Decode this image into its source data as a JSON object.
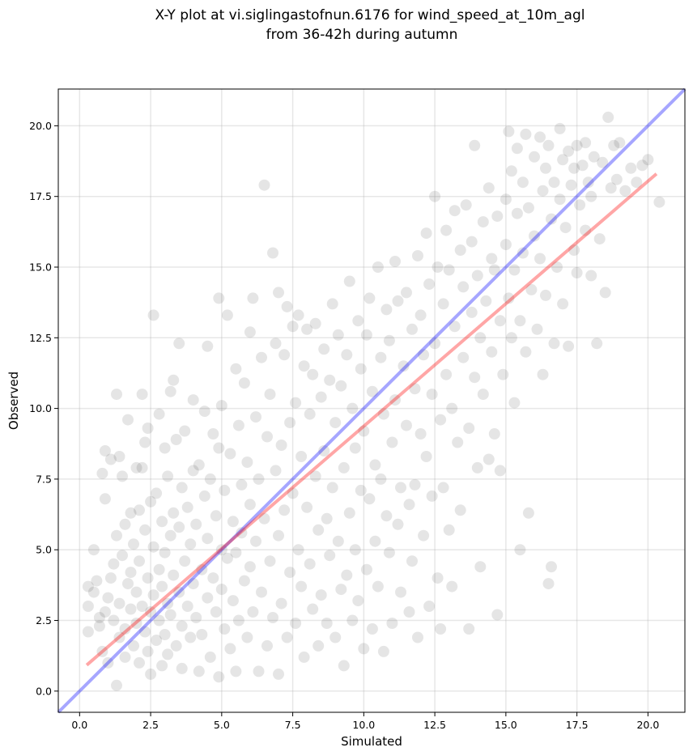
{
  "chart_data": {
    "type": "scatter",
    "title_line1": "X-Y plot at vi.siglingastofnun.6176 for wind_speed_at_10m_agl",
    "title_line2": "from 36-42h during autumn",
    "xlabel": "Simulated",
    "ylabel": "Observed",
    "xlim": [
      -0.75,
      21.3
    ],
    "ylim": [
      -0.75,
      21.3
    ],
    "xticks": [
      0.0,
      2.5,
      5.0,
      7.5,
      10.0,
      12.5,
      15.0,
      17.5,
      20.0
    ],
    "yticks": [
      0.0,
      2.5,
      5.0,
      7.5,
      10.0,
      12.5,
      15.0,
      17.5,
      20.0
    ],
    "grid": true,
    "marker_color": "#000000",
    "marker_alpha": 0.1,
    "identity_line": {
      "from": [
        -0.75,
        -0.75
      ],
      "to": [
        21.3,
        21.3
      ],
      "color": "#0000ff",
      "alpha": 0.35
    },
    "fit_line": {
      "from": [
        0.25,
        0.92
      ],
      "to": [
        20.3,
        18.3
      ],
      "color": "#ff0000",
      "alpha": 0.35
    },
    "points": [
      [
        0.3,
        2.1
      ],
      [
        0.3,
        3.7
      ],
      [
        0.3,
        3.0
      ],
      [
        0.5,
        5.0
      ],
      [
        0.5,
        3.5
      ],
      [
        0.6,
        3.9
      ],
      [
        0.7,
        2.6
      ],
      [
        0.7,
        2.3
      ],
      [
        0.8,
        1.4
      ],
      [
        0.8,
        7.7
      ],
      [
        0.9,
        6.8
      ],
      [
        0.9,
        8.5
      ],
      [
        0.9,
        2.8
      ],
      [
        1.0,
        3.3
      ],
      [
        1.0,
        1.0
      ],
      [
        1.1,
        8.2
      ],
      [
        1.1,
        4.0
      ],
      [
        1.2,
        2.5
      ],
      [
        1.2,
        4.5
      ],
      [
        1.3,
        5.5
      ],
      [
        1.3,
        10.5
      ],
      [
        1.3,
        0.2
      ],
      [
        1.4,
        8.3
      ],
      [
        1.4,
        1.9
      ],
      [
        1.4,
        3.1
      ],
      [
        1.5,
        7.6
      ],
      [
        1.5,
        4.8
      ],
      [
        1.6,
        2.2
      ],
      [
        1.6,
        5.9
      ],
      [
        1.6,
        1.2
      ],
      [
        1.7,
        9.6
      ],
      [
        1.7,
        3.8
      ],
      [
        1.8,
        2.9
      ],
      [
        1.8,
        6.3
      ],
      [
        1.8,
        4.2
      ],
      [
        1.9,
        1.6
      ],
      [
        1.9,
        5.2
      ],
      [
        2.0,
        3.5
      ],
      [
        2.0,
        7.9
      ],
      [
        2.0,
        2.4
      ],
      [
        2.1,
        6.4
      ],
      [
        2.1,
        1.0
      ],
      [
        2.1,
        4.6
      ],
      [
        2.2,
        10.5
      ],
      [
        2.2,
        3.0
      ],
      [
        2.2,
        7.9
      ],
      [
        2.3,
        8.8
      ],
      [
        2.3,
        2.1
      ],
      [
        2.3,
        5.7
      ],
      [
        2.4,
        1.4
      ],
      [
        2.4,
        4.0
      ],
      [
        2.4,
        9.3
      ],
      [
        2.5,
        2.8
      ],
      [
        2.5,
        6.7
      ],
      [
        2.5,
        0.6
      ],
      [
        2.6,
        13.3
      ],
      [
        2.6,
        3.4
      ],
      [
        2.6,
        5.1
      ],
      [
        2.7,
        1.8
      ],
      [
        2.7,
        7.0
      ],
      [
        2.8,
        4.3
      ],
      [
        2.8,
        2.5
      ],
      [
        2.8,
        9.8
      ],
      [
        2.9,
        3.7
      ],
      [
        2.9,
        6.0
      ],
      [
        2.9,
        0.9
      ],
      [
        3.0,
        2.0
      ],
      [
        3.0,
        8.6
      ],
      [
        3.0,
        4.9
      ],
      [
        3.1,
        3.1
      ],
      [
        3.1,
        7.6
      ],
      [
        3.1,
        1.3
      ],
      [
        3.2,
        5.5
      ],
      [
        3.2,
        10.6
      ],
      [
        3.2,
        2.7
      ],
      [
        3.3,
        6.3
      ],
      [
        3.3,
        4.1
      ],
      [
        3.3,
        11.0
      ],
      [
        3.4,
        1.6
      ],
      [
        3.4,
        8.9
      ],
      [
        3.5,
        3.5
      ],
      [
        3.5,
        12.3
      ],
      [
        3.5,
        5.8
      ],
      [
        3.6,
        2.3
      ],
      [
        3.6,
        7.2
      ],
      [
        3.6,
        0.8
      ],
      [
        3.7,
        4.6
      ],
      [
        3.7,
        9.2
      ],
      [
        3.8,
        3.0
      ],
      [
        3.8,
        6.5
      ],
      [
        3.9,
        1.9
      ],
      [
        3.9,
        5.2
      ],
      [
        4.0,
        10.3
      ],
      [
        4.0,
        3.8
      ],
      [
        4.0,
        7.8
      ],
      [
        4.1,
        2.6
      ],
      [
        4.1,
        5.9
      ],
      [
        4.2,
        0.7
      ],
      [
        4.2,
        8.0
      ],
      [
        4.3,
        4.3
      ],
      [
        4.3,
        2.0
      ],
      [
        4.4,
        6.9
      ],
      [
        4.4,
        9.9
      ],
      [
        4.5,
        3.3
      ],
      [
        4.5,
        12.2
      ],
      [
        4.5,
        5.4
      ],
      [
        4.6,
        1.2
      ],
      [
        4.6,
        7.5
      ],
      [
        4.7,
        4.0
      ],
      [
        4.7,
        9.1
      ],
      [
        4.8,
        2.8
      ],
      [
        4.8,
        6.2
      ],
      [
        4.9,
        13.9
      ],
      [
        4.9,
        0.5
      ],
      [
        4.9,
        8.6
      ],
      [
        5.0,
        3.6
      ],
      [
        5.0,
        5.0
      ],
      [
        5.0,
        10.1
      ],
      [
        5.1,
        2.2
      ],
      [
        5.1,
        7.1
      ],
      [
        5.2,
        4.7
      ],
      [
        5.2,
        13.3
      ],
      [
        5.3,
        1.5
      ],
      [
        5.3,
        8.4
      ],
      [
        5.4,
        3.2
      ],
      [
        5.4,
        6.0
      ],
      [
        5.5,
        11.4
      ],
      [
        5.5,
        0.7
      ],
      [
        5.5,
        4.9
      ],
      [
        5.6,
        9.4
      ],
      [
        5.6,
        2.5
      ],
      [
        5.7,
        7.3
      ],
      [
        5.7,
        5.6
      ],
      [
        5.8,
        10.9
      ],
      [
        5.8,
        3.9
      ],
      [
        5.9,
        1.9
      ],
      [
        5.9,
        8.1
      ],
      [
        6.0,
        12.7
      ],
      [
        6.0,
        4.4
      ],
      [
        6.0,
        6.6
      ],
      [
        6.1,
        13.9
      ],
      [
        6.1,
        2.8
      ],
      [
        6.2,
        9.7
      ],
      [
        6.2,
        5.3
      ],
      [
        6.3,
        0.7
      ],
      [
        6.3,
        7.5
      ],
      [
        6.4,
        11.8
      ],
      [
        6.4,
        3.5
      ],
      [
        6.5,
        17.9
      ],
      [
        6.5,
        6.1
      ],
      [
        6.6,
        9.0
      ],
      [
        6.6,
        1.6
      ],
      [
        6.7,
        4.6
      ],
      [
        6.7,
        10.5
      ],
      [
        6.8,
        15.5
      ],
      [
        6.8,
        2.6
      ],
      [
        6.9,
        7.8
      ],
      [
        6.9,
        12.3
      ],
      [
        7.0,
        14.1
      ],
      [
        7.0,
        0.6
      ],
      [
        7.0,
        5.5
      ],
      [
        7.1,
        8.7
      ],
      [
        7.1,
        3.1
      ],
      [
        7.2,
        11.9
      ],
      [
        7.2,
        6.4
      ],
      [
        7.3,
        13.6
      ],
      [
        7.3,
        1.9
      ],
      [
        7.4,
        9.5
      ],
      [
        7.4,
        4.2
      ],
      [
        7.5,
        12.9
      ],
      [
        7.5,
        7.0
      ],
      [
        7.6,
        2.4
      ],
      [
        7.6,
        10.2
      ],
      [
        7.7,
        5.0
      ],
      [
        7.7,
        13.3
      ],
      [
        7.8,
        8.3
      ],
      [
        7.8,
        3.7
      ],
      [
        7.9,
        11.5
      ],
      [
        7.9,
        1.2
      ],
      [
        8.0,
        6.5
      ],
      [
        8.0,
        12.8
      ],
      [
        8.1,
        9.8
      ],
      [
        8.1,
        4.5
      ],
      [
        8.2,
        2.9
      ],
      [
        8.2,
        11.2
      ],
      [
        8.3,
        7.6
      ],
      [
        8.3,
        13.0
      ],
      [
        8.4,
        5.7
      ],
      [
        8.4,
        1.6
      ],
      [
        8.5,
        10.4
      ],
      [
        8.5,
        3.4
      ],
      [
        8.6,
        12.1
      ],
      [
        8.6,
        8.5
      ],
      [
        8.7,
        6.1
      ],
      [
        8.7,
        2.4
      ],
      [
        8.8,
        11.0
      ],
      [
        8.8,
        4.8
      ],
      [
        8.9,
        13.7
      ],
      [
        8.9,
        7.2
      ],
      [
        9.0,
        9.5
      ],
      [
        9.0,
        1.9
      ],
      [
        9.1,
        5.3
      ],
      [
        9.1,
        12.6
      ],
      [
        9.2,
        3.6
      ],
      [
        9.2,
        10.8
      ],
      [
        9.3,
        7.9
      ],
      [
        9.3,
        0.9
      ],
      [
        9.4,
        4.1
      ],
      [
        9.4,
        11.9
      ],
      [
        9.5,
        14.5
      ],
      [
        9.5,
        6.3
      ],
      [
        9.6,
        2.5
      ],
      [
        9.6,
        10.0
      ],
      [
        9.7,
        8.6
      ],
      [
        9.7,
        5.0
      ],
      [
        9.8,
        13.1
      ],
      [
        9.8,
        3.2
      ],
      [
        9.9,
        11.4
      ],
      [
        9.9,
        7.1
      ],
      [
        10.0,
        1.5
      ],
      [
        10.0,
        9.2
      ],
      [
        10.1,
        12.6
      ],
      [
        10.1,
        4.3
      ],
      [
        10.2,
        6.8
      ],
      [
        10.2,
        13.9
      ],
      [
        10.3,
        2.2
      ],
      [
        10.3,
        10.6
      ],
      [
        10.4,
        8.0
      ],
      [
        10.4,
        5.3
      ],
      [
        10.5,
        15.0
      ],
      [
        10.5,
        3.7
      ],
      [
        10.6,
        11.8
      ],
      [
        10.6,
        7.5
      ],
      [
        10.7,
        9.8
      ],
      [
        10.7,
        1.4
      ],
      [
        10.8,
        13.5
      ],
      [
        10.8,
        6.2
      ],
      [
        10.9,
        4.9
      ],
      [
        10.9,
        12.4
      ],
      [
        11.0,
        8.8
      ],
      [
        11.0,
        2.4
      ],
      [
        11.1,
        15.2
      ],
      [
        11.1,
        10.3
      ],
      [
        11.2,
        5.9
      ],
      [
        11.2,
        13.8
      ],
      [
        11.3,
        7.2
      ],
      [
        11.3,
        3.5
      ],
      [
        11.4,
        11.5
      ],
      [
        11.5,
        9.4
      ],
      [
        11.5,
        14.1
      ],
      [
        11.6,
        6.6
      ],
      [
        11.6,
        2.8
      ],
      [
        11.7,
        12.8
      ],
      [
        11.7,
        4.6
      ],
      [
        11.8,
        10.7
      ],
      [
        11.8,
        7.3
      ],
      [
        11.9,
        15.4
      ],
      [
        11.9,
        1.9
      ],
      [
        12.0,
        13.3
      ],
      [
        12.0,
        9.1
      ],
      [
        12.1,
        5.5
      ],
      [
        12.1,
        11.9
      ],
      [
        12.2,
        16.2
      ],
      [
        12.2,
        8.3
      ],
      [
        12.3,
        3.0
      ],
      [
        12.3,
        14.4
      ],
      [
        12.4,
        10.5
      ],
      [
        12.4,
        6.9
      ],
      [
        12.5,
        17.5
      ],
      [
        12.5,
        12.3
      ],
      [
        12.6,
        4.0
      ],
      [
        12.6,
        15.0
      ],
      [
        12.7,
        9.6
      ],
      [
        12.7,
        2.2
      ],
      [
        12.8,
        13.7
      ],
      [
        12.8,
        7.2
      ],
      [
        12.9,
        11.2
      ],
      [
        12.9,
        16.3
      ],
      [
        13.0,
        5.7
      ],
      [
        13.0,
        14.9
      ],
      [
        13.1,
        10.0
      ],
      [
        13.1,
        3.7
      ],
      [
        13.2,
        12.9
      ],
      [
        13.2,
        17.0
      ],
      [
        13.3,
        8.8
      ],
      [
        13.4,
        15.6
      ],
      [
        13.4,
        6.4
      ],
      [
        13.5,
        11.8
      ],
      [
        13.5,
        14.3
      ],
      [
        13.6,
        17.2
      ],
      [
        13.7,
        9.3
      ],
      [
        13.7,
        2.2
      ],
      [
        13.8,
        13.4
      ],
      [
        13.8,
        15.9
      ],
      [
        13.9,
        11.1
      ],
      [
        13.9,
        19.3
      ],
      [
        14.0,
        7.9
      ],
      [
        14.0,
        14.7
      ],
      [
        14.1,
        12.5
      ],
      [
        14.1,
        4.4
      ],
      [
        14.2,
        16.6
      ],
      [
        14.2,
        10.5
      ],
      [
        14.3,
        13.8
      ],
      [
        14.4,
        8.2
      ],
      [
        14.4,
        17.8
      ],
      [
        14.5,
        15.3
      ],
      [
        14.5,
        12.0
      ],
      [
        14.6,
        14.9
      ],
      [
        14.6,
        9.1
      ],
      [
        14.7,
        2.7
      ],
      [
        14.7,
        16.8
      ],
      [
        14.8,
        13.1
      ],
      [
        14.8,
        7.8
      ],
      [
        14.9,
        11.2
      ],
      [
        15.0,
        17.4
      ],
      [
        15.0,
        15.8
      ],
      [
        15.1,
        13.9
      ],
      [
        15.1,
        19.8
      ],
      [
        15.2,
        12.5
      ],
      [
        15.2,
        18.4
      ],
      [
        15.3,
        14.9
      ],
      [
        15.3,
        10.2
      ],
      [
        15.4,
        16.9
      ],
      [
        15.4,
        19.2
      ],
      [
        15.5,
        5.0
      ],
      [
        15.5,
        13.1
      ],
      [
        15.6,
        18.0
      ],
      [
        15.6,
        15.5
      ],
      [
        15.7,
        12.0
      ],
      [
        15.7,
        19.7
      ],
      [
        15.8,
        6.3
      ],
      [
        15.8,
        17.1
      ],
      [
        15.9,
        14.2
      ],
      [
        16.0,
        16.1
      ],
      [
        16.0,
        18.9
      ],
      [
        16.1,
        12.8
      ],
      [
        16.2,
        19.6
      ],
      [
        16.2,
        15.3
      ],
      [
        16.3,
        11.2
      ],
      [
        16.3,
        17.7
      ],
      [
        16.4,
        18.5
      ],
      [
        16.4,
        14.0
      ],
      [
        16.5,
        3.8
      ],
      [
        16.5,
        19.3
      ],
      [
        16.6,
        16.7
      ],
      [
        16.6,
        4.4
      ],
      [
        16.7,
        12.3
      ],
      [
        16.7,
        18.0
      ],
      [
        16.8,
        15.0
      ],
      [
        16.9,
        19.9
      ],
      [
        16.9,
        17.4
      ],
      [
        17.0,
        13.7
      ],
      [
        17.0,
        18.8
      ],
      [
        17.1,
        16.4
      ],
      [
        17.2,
        12.2
      ],
      [
        17.2,
        19.1
      ],
      [
        17.3,
        17.9
      ],
      [
        17.4,
        15.6
      ],
      [
        17.4,
        18.5
      ],
      [
        17.5,
        14.8
      ],
      [
        17.5,
        19.3
      ],
      [
        17.6,
        17.2
      ],
      [
        17.7,
        18.6
      ],
      [
        17.8,
        16.3
      ],
      [
        17.8,
        19.4
      ],
      [
        17.9,
        18.0
      ],
      [
        18.0,
        14.7
      ],
      [
        18.0,
        17.5
      ],
      [
        18.1,
        18.9
      ],
      [
        18.2,
        12.3
      ],
      [
        18.3,
        16.0
      ],
      [
        18.4,
        18.7
      ],
      [
        18.5,
        14.1
      ],
      [
        18.6,
        20.3
      ],
      [
        18.7,
        17.8
      ],
      [
        18.8,
        19.3
      ],
      [
        18.9,
        18.1
      ],
      [
        19.0,
        19.4
      ],
      [
        19.2,
        17.7
      ],
      [
        19.4,
        18.5
      ],
      [
        19.6,
        18.0
      ],
      [
        19.8,
        18.6
      ],
      [
        20.0,
        18.8
      ],
      [
        20.4,
        17.3
      ]
    ]
  }
}
